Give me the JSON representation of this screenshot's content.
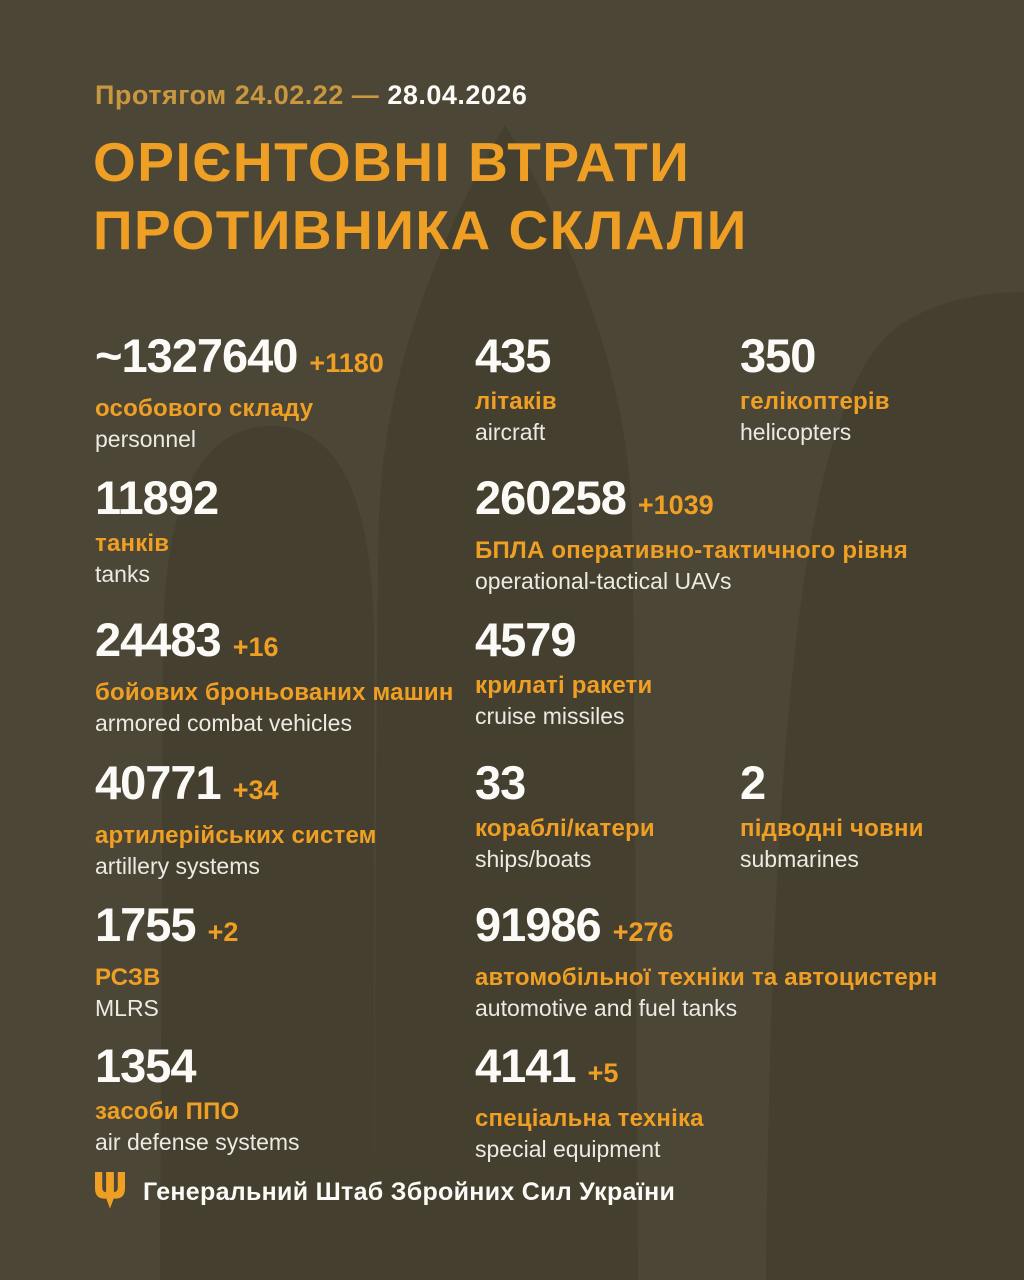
{
  "colors": {
    "background": "#4B4636",
    "watermark": "#443F2F",
    "accent": "#EF9F24",
    "muted_gold": "#C9973F",
    "number_white": "#FBFAF7",
    "label_light": "#ECEAE3"
  },
  "header": {
    "period_prefix": "Протягом 24.02.22 —",
    "period_date": "28.04.2026",
    "title_line1": "ОРІЄНТОВНІ ВТРАТИ",
    "title_line2": "ПРОТИВНИКА СКЛАЛИ"
  },
  "stats": [
    {
      "value": "~1327640",
      "delta": "+1180",
      "label_ua": "особового складу",
      "label_en": "personnel",
      "col": 1,
      "row": 1
    },
    {
      "value": "435",
      "delta": "",
      "label_ua": "літаків",
      "label_en": "aircraft",
      "col": 2,
      "row": 1
    },
    {
      "value": "350",
      "delta": "",
      "label_ua": "гелікоптерів",
      "label_en": "helicopters",
      "col": 3,
      "row": 1
    },
    {
      "value": "11892",
      "delta": "",
      "label_ua": "танків",
      "label_en": "tanks",
      "col": 1,
      "row": 2
    },
    {
      "value": "260258",
      "delta": "+1039",
      "label_ua": "БПЛА оперативно-тактичного рівня",
      "label_en": "operational-tactical UAVs",
      "col": 2,
      "row": 2
    },
    {
      "value": "24483",
      "delta": "+16",
      "label_ua": "бойових броньованих машин",
      "label_en": "armored combat vehicles",
      "col": 1,
      "row": 3
    },
    {
      "value": "4579",
      "delta": "",
      "label_ua": "крилаті ракети",
      "label_en": "cruise missiles",
      "col": 2,
      "row": 3
    },
    {
      "value": "40771",
      "delta": "+34",
      "label_ua": "артилерійських систем",
      "label_en": "artillery systems",
      "col": 1,
      "row": 4
    },
    {
      "value": "33",
      "delta": "",
      "label_ua": "кораблі/катери",
      "label_en": "ships/boats",
      "col": 2,
      "row": 4
    },
    {
      "value": "2",
      "delta": "",
      "label_ua": "підводні човни",
      "label_en": "submarines",
      "col": 3,
      "row": 4
    },
    {
      "value": "1755",
      "delta": "+2",
      "label_ua": "РСЗВ",
      "label_en": "MLRS",
      "col": 1,
      "row": 5
    },
    {
      "value": "91986",
      "delta": "+276",
      "label_ua": "автомобільної техніки та автоцистерн",
      "label_en": "automotive and fuel tanks",
      "col": 2,
      "row": 5
    },
    {
      "value": "1354",
      "delta": "",
      "label_ua": "засоби ППО",
      "label_en": "air defense systems",
      "col": 1,
      "row": 6
    },
    {
      "value": "4141",
      "delta": "+5",
      "label_ua": "спеціальна техніка",
      "label_en": "special equipment",
      "col": 2,
      "row": 6
    }
  ],
  "footer": {
    "org": "Генеральний Штаб Збройних Сил України"
  },
  "chart_data": {
    "type": "table",
    "title": "Орієнтовні втрати противника склали",
    "period": "Протягом 24.02.22 — 28.04.2026",
    "columns": [
      "category_ua",
      "category_en",
      "total",
      "daily_change"
    ],
    "rows": [
      [
        "особового складу",
        "personnel",
        "~1327640",
        "+1180"
      ],
      [
        "танків",
        "tanks",
        "11892",
        ""
      ],
      [
        "бойових броньованих машин",
        "armored combat vehicles",
        "24483",
        "+16"
      ],
      [
        "артилерійських систем",
        "artillery systems",
        "40771",
        "+34"
      ],
      [
        "РСЗВ",
        "MLRS",
        "1755",
        "+2"
      ],
      [
        "засоби ППО",
        "air defense systems",
        "1354",
        ""
      ],
      [
        "літаків",
        "aircraft",
        "435",
        ""
      ],
      [
        "гелікоптерів",
        "helicopters",
        "350",
        ""
      ],
      [
        "БПЛА оперативно-тактичного рівня",
        "operational-tactical UAVs",
        "260258",
        "+1039"
      ],
      [
        "крилаті ракети",
        "cruise missiles",
        "4579",
        ""
      ],
      [
        "кораблі/катери",
        "ships/boats",
        "33",
        ""
      ],
      [
        "підводні човни",
        "submarines",
        "2",
        ""
      ],
      [
        "автомобільної техніки та автоцистерн",
        "automotive and fuel tanks",
        "91986",
        "+276"
      ],
      [
        "спеціальна техніка",
        "special equipment",
        "4141",
        "+5"
      ]
    ]
  }
}
